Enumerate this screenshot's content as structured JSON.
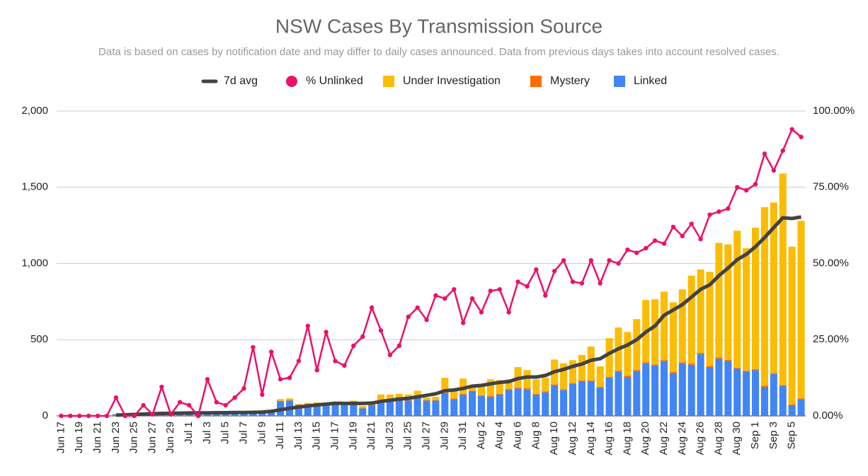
{
  "chart_data": {
    "type": "combo",
    "title": "NSW Cases By Transmission Source",
    "subtitle": "Data is based on cases by notification date and may differ to daily cases announced. Data from previous days takes into account resolved cases.",
    "categories": [
      "Jun 17",
      null,
      "Jun 19",
      null,
      "Jun 21",
      null,
      "Jun 23",
      null,
      "Jun 25",
      null,
      "Jun 27",
      null,
      "Jun 29",
      null,
      "Jul 1",
      null,
      "Jul 3",
      null,
      "Jul 5",
      null,
      "Jul 7",
      null,
      "Jul 9",
      null,
      "Jul 11",
      null,
      "Jul 13",
      null,
      "Jul 15",
      null,
      "Jul 17",
      null,
      "Jul 19",
      null,
      "Jul 21",
      null,
      "Jul 23",
      null,
      "Jul 25",
      null,
      "Jul 27",
      null,
      "Jul 29",
      null,
      "Jul 31",
      null,
      "Aug 2",
      null,
      "Aug 4",
      null,
      "Aug 6",
      null,
      "Aug 8",
      null,
      "Aug 10",
      null,
      "Aug 12",
      null,
      "Aug 14",
      null,
      "Aug 16",
      null,
      "Aug 18",
      null,
      "Aug 20",
      null,
      "Aug 22",
      null,
      "Aug 24",
      null,
      "Aug 26",
      null,
      "Aug 28",
      null,
      "Aug 30",
      null,
      "Sep 1",
      null,
      "Sep 3",
      null,
      "Sep 5",
      null
    ],
    "ylim": [
      0,
      2000
    ],
    "yticks": [
      0,
      500,
      {
        "value": 1000,
        "label": "1,000"
      },
      {
        "value": 1500,
        "label": "1,500"
      },
      {
        "value": 2000,
        "label": "2,000"
      }
    ],
    "y2lim": [
      0,
      100
    ],
    "y2ticks": [
      {
        "value": 0,
        "label": "0.00%"
      },
      {
        "value": 25,
        "label": "25.00%"
      },
      {
        "value": 50,
        "label": "50.00%"
      },
      {
        "value": 75,
        "label": "75.00%"
      },
      {
        "value": 100,
        "label": "100.00%"
      }
    ],
    "grid": true,
    "legend": "top",
    "series": [
      {
        "name": "7d avg",
        "type": "line",
        "color": "#424242",
        "values": [
          null,
          null,
          null,
          null,
          null,
          null,
          5,
          7,
          9,
          12,
          14,
          16,
          17,
          18,
          19,
          20,
          20,
          21,
          21,
          22,
          22,
          23,
          25,
          30,
          40,
          50,
          58,
          65,
          72,
          77,
          83,
          82,
          82,
          82,
          84,
          95,
          102,
          110,
          115,
          125,
          135,
          145,
          165,
          170,
          180,
          195,
          200,
          210,
          220,
          225,
          245,
          255,
          255,
          265,
          290,
          305,
          325,
          340,
          365,
          375,
          410,
          440,
          465,
          500,
          550,
          590,
          660,
          695,
          730,
          780,
          830,
          860,
          920,
          970,
          1025,
          1060,
          1110,
          1170,
          1235,
          1300,
          1295,
          1305
        ]
      },
      {
        "name": "% Unlinked",
        "type": "line-points",
        "axis": "y2",
        "color": "#ec1067",
        "values": [
          0,
          0,
          0,
          0,
          0,
          0,
          6,
          0,
          0,
          3.5,
          0.5,
          9.5,
          0.5,
          4.5,
          3.5,
          0,
          12,
          4.5,
          3.5,
          6,
          9,
          22.5,
          7,
          21,
          12,
          12.5,
          18,
          29.5,
          15,
          27.5,
          18,
          16.5,
          23,
          26,
          35.5,
          28,
          20,
          23,
          32.5,
          35.5,
          31.5,
          39.5,
          38.5,
          41.5,
          30.5,
          38.5,
          34,
          41,
          41.5,
          34,
          44,
          42.5,
          48,
          39.5,
          47.5,
          51,
          44,
          43.5,
          51,
          43.5,
          51,
          50,
          54.5,
          53.5,
          55,
          57.5,
          56.5,
          62,
          59,
          63,
          58,
          66,
          67,
          68,
          75,
          74,
          76,
          86,
          80.5,
          87,
          94,
          91.5
        ]
      },
      {
        "name": "Under Investigation",
        "type": "stacked-bar",
        "color": "#fbbc04",
        "values": [
          0,
          0,
          0,
          0,
          0,
          0,
          0,
          0,
          0,
          0,
          0,
          0,
          0,
          0,
          0,
          0,
          0,
          0,
          0,
          0,
          0,
          3,
          0,
          2,
          12,
          12,
          4,
          5,
          5,
          5,
          5,
          5,
          11,
          12,
          6,
          35,
          25,
          21,
          36,
          30,
          16,
          21,
          95,
          55,
          101,
          30,
          71,
          110,
          90,
          64,
          135,
          119,
          95,
          89,
          164,
          170,
          149,
          168,
          223,
          134,
          254,
          284,
          288,
          334,
          408,
          428,
          449,
          457,
          478,
          577,
          547,
          618,
          752,
          758,
          899,
          804,
          928,
          1172,
          1119,
          1388,
          1035,
          1165
        ]
      },
      {
        "name": "Mystery",
        "type": "stacked-bar",
        "color": "#ff6d01",
        "values": [
          0,
          0,
          0,
          0,
          0,
          0,
          1,
          0,
          0,
          1,
          0,
          1,
          0,
          1,
          1,
          0,
          2,
          1,
          1,
          1,
          1,
          2,
          1,
          3,
          3,
          3,
          4,
          5,
          3,
          4,
          3,
          3,
          4,
          3,
          4,
          5,
          5,
          4,
          4,
          5,
          4,
          4,
          5,
          5,
          4,
          5,
          4,
          5,
          5,
          6,
          5,
          6,
          5,
          6,
          6,
          5,
          6,
          7,
          7,
          6,
          6,
          6,
          7,
          6,
          7,
          7,
          6,
          8,
          7,
          8,
          8,
          7,
          8,
          7,
          6,
          6,
          7,
          8,
          6,
          7,
          5,
          5
        ]
      },
      {
        "name": "Linked",
        "type": "stacked-bar",
        "color": "#4285f4",
        "values": [
          2,
          1,
          3,
          2,
          1,
          3,
          10,
          15,
          12,
          20,
          15,
          18,
          14,
          18,
          20,
          22,
          16,
          25,
          20,
          25,
          18,
          25,
          28,
          35,
          95,
          100,
          70,
          75,
          80,
          75,
          85,
          80,
          85,
          50,
          70,
          100,
          110,
          120,
          100,
          130,
          100,
          100,
          150,
          110,
          140,
          160,
          130,
          125,
          140,
          170,
          180,
          175,
          140,
          155,
          200,
          170,
          210,
          225,
          225,
          185,
          250,
          290,
          255,
          295,
          345,
          330,
          360,
          280,
          345,
          335,
          405,
          320,
          375,
          360,
          310,
          290,
          300,
          190,
          275,
          195,
          70,
          110
        ]
      }
    ]
  }
}
